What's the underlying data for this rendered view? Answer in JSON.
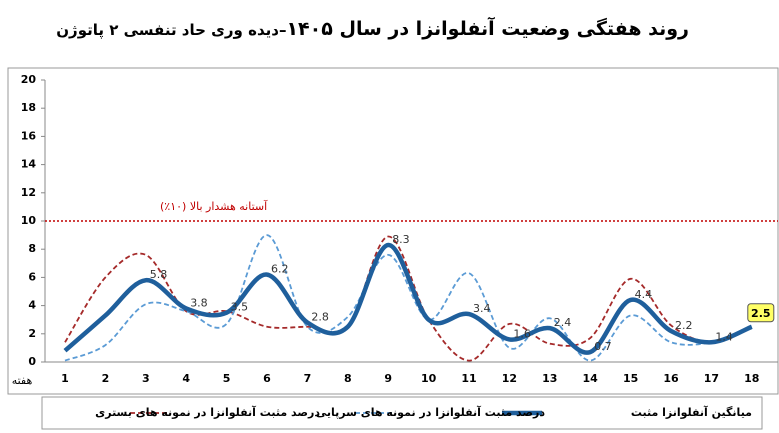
{
  "chart_data": {
    "type": "line",
    "title": "روند هفتگی وضعیت آنفلوانزا در سال ۱۴۰۵",
    "subtitle": "–دیده وری حاد تنفسی ۲ پاتوژن",
    "x_label": "هفته",
    "categories": [
      "1",
      "2",
      "3",
      "4",
      "5",
      "6",
      "7",
      "8",
      "9",
      "10",
      "11",
      "12",
      "13",
      "14",
      "15",
      "16",
      "17",
      "18"
    ],
    "ylim": [
      0,
      20
    ],
    "yticks": [
      0,
      2,
      4,
      6,
      8,
      10,
      12,
      14,
      16,
      18,
      20
    ],
    "threshold": {
      "value": 10,
      "label": "آستانه هشدار بالا (۱۰٪)"
    },
    "series": [
      {
        "name": "میانگین آنفلوانزا مثبت",
        "color": "#1f5f9c",
        "style": "solid",
        "values": [
          0.8,
          3.3,
          5.8,
          3.8,
          3.5,
          6.2,
          2.8,
          2.5,
          8.3,
          3.0,
          3.4,
          1.6,
          2.4,
          0.7,
          4.4,
          2.2,
          1.4,
          2.5
        ],
        "value_labels": [
          null,
          null,
          "5.8",
          "3.8",
          "3.5",
          "6.2",
          "2.8",
          null,
          "8.3",
          null,
          "3.4",
          "1.6",
          "2.4",
          "0.7",
          "4.4",
          "2.2",
          "1.4",
          "2.5"
        ]
      },
      {
        "name": "درصد مثبت آنفلوانزا در نمونه های سرپایی",
        "color": "#5b9bd5",
        "style": "dashed",
        "values": [
          0.1,
          1.2,
          4.1,
          3.6,
          2.7,
          9.0,
          2.5,
          3.2,
          7.6,
          3.0,
          6.3,
          1.0,
          3.1,
          0.1,
          3.3,
          1.4,
          1.4,
          2.4
        ]
      },
      {
        "name": "درصد مثبت آنفلوانزا در نمونه های بستری",
        "color": "#a52a2a",
        "style": "dashed",
        "values": [
          1.4,
          6.0,
          7.6,
          3.6,
          3.6,
          2.5,
          2.5,
          2.5,
          8.9,
          3.0,
          0.1,
          2.7,
          1.3,
          1.7,
          5.9,
          2.6,
          1.4,
          2.4
        ]
      }
    ]
  }
}
